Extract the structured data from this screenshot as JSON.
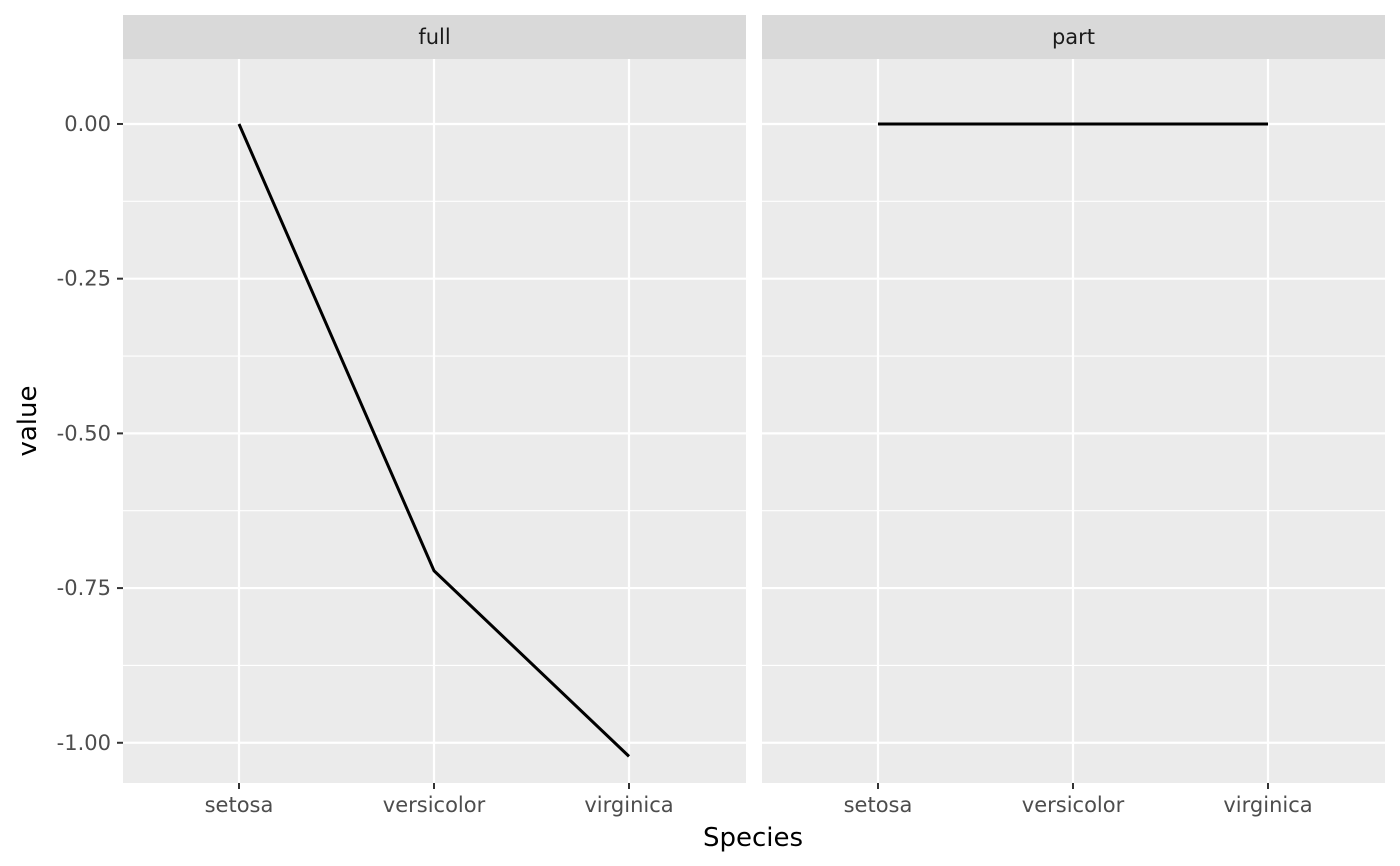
{
  "chart_data": {
    "type": "line",
    "facet_by": "variable",
    "xlabel": "Species",
    "ylabel": "value",
    "categories": [
      "setosa",
      "versicolor",
      "virginica"
    ],
    "ylim": [
      -1.065,
      0.105
    ],
    "y_ticks": [
      0.0,
      -0.25,
      -0.5,
      -0.75,
      -1.0
    ],
    "y_tick_labels": [
      "0.00",
      "-0.25",
      "-0.50",
      "-0.75",
      "-1.00"
    ],
    "grid": true,
    "legend": "none",
    "panels": [
      {
        "strip": "full",
        "values": [
          0.0,
          -0.722,
          -1.022
        ]
      },
      {
        "strip": "part",
        "values": [
          0.0,
          0.0,
          0.0
        ]
      }
    ],
    "colors": {
      "panel_bg": "#EBEBEB",
      "strip_bg": "#D9D9D9",
      "grid": "#FFFFFF",
      "line": "#000000",
      "tick": "#333333"
    }
  }
}
